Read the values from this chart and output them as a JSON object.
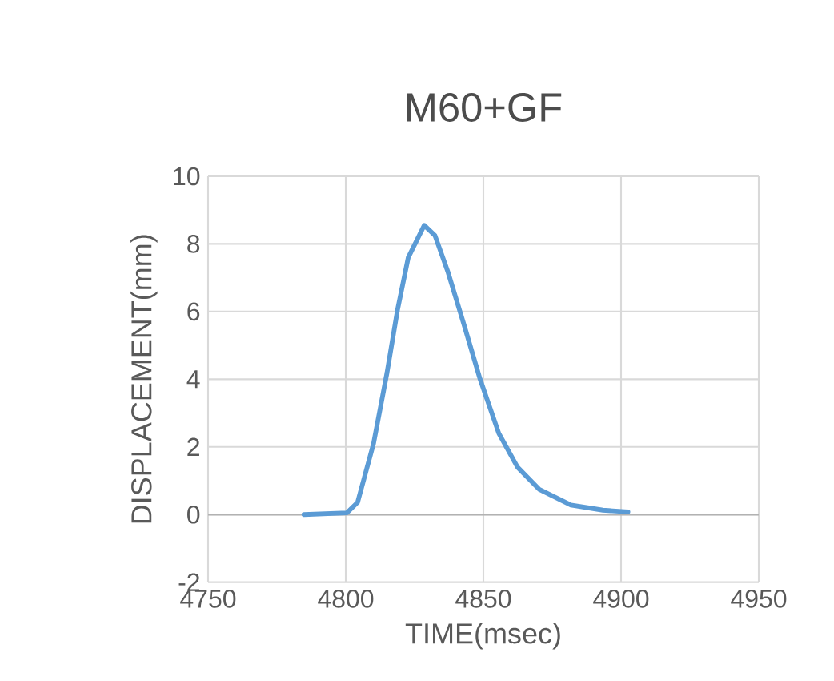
{
  "chart_data": {
    "type": "line",
    "title": "M60+GF",
    "xlabel": "TIME(msec)",
    "ylabel": "DISPLACEMENT(mm)",
    "xlim": [
      4750,
      4950
    ],
    "xticks": [
      4750,
      4800,
      4850,
      4900,
      4950
    ],
    "ylim": [
      -2,
      10
    ],
    "yticks": [
      -2,
      0,
      2,
      4,
      6,
      8,
      10
    ],
    "grid": true,
    "series": [
      {
        "color": "#5b9bd5",
        "x": [
          4784.8,
          4800.4,
          4804.3,
          4810.1,
          4815,
          4818.8,
          4822.7,
          4828.5,
          4832.4,
          4837.2,
          4843,
          4848.8,
          4855.6,
          4862.4,
          4870.2,
          4881.8,
          4893.4,
          4902.5
        ],
        "values": [
          0,
          0.05,
          0.36,
          2.1,
          4.2,
          6.05,
          7.6,
          8.55,
          8.25,
          7.15,
          5.6,
          4.0,
          2.4,
          1.4,
          0.75,
          0.28,
          0.13,
          0.08
        ]
      }
    ]
  }
}
